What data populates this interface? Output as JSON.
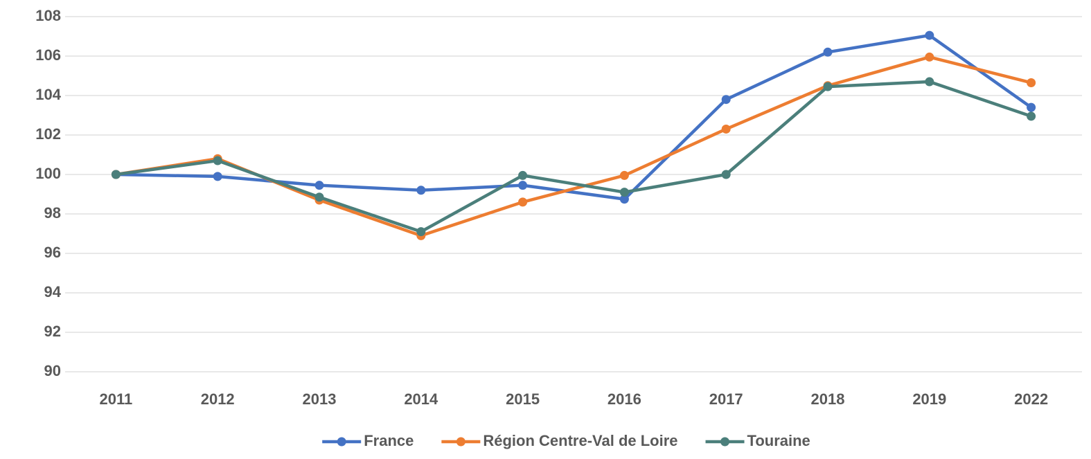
{
  "chart_data": {
    "type": "line",
    "categories": [
      "2011",
      "2012",
      "2013",
      "2014",
      "2015",
      "2016",
      "2017",
      "2018",
      "2019",
      "2022"
    ],
    "series": [
      {
        "name": "France",
        "color": "#4472c4",
        "values": [
          100,
          99.9,
          99.45,
          99.2,
          99.45,
          98.75,
          103.8,
          106.2,
          107.05,
          103.4
        ]
      },
      {
        "name": "Région Centre-Val de Loire",
        "color": "#ed7d31",
        "values": [
          100,
          100.8,
          98.7,
          96.9,
          98.6,
          99.95,
          102.3,
          104.5,
          105.95,
          104.65
        ]
      },
      {
        "name": "Touraine",
        "color": "#4b7f7b",
        "values": [
          100,
          100.7,
          98.85,
          97.1,
          99.95,
          99.1,
          100,
          104.45,
          104.7,
          102.95
        ]
      }
    ],
    "ylim": [
      90,
      108
    ],
    "yticks": [
      90,
      92,
      94,
      96,
      98,
      100,
      102,
      104,
      106,
      108
    ],
    "grid": true,
    "legend": "bottom"
  }
}
